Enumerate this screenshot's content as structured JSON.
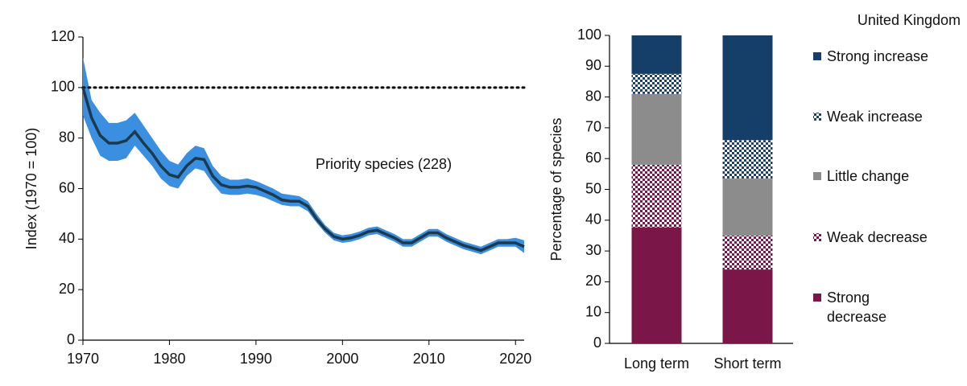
{
  "chart_data": [
    {
      "type": "line",
      "y_label": "Index (1970 = 100)",
      "annotation": "Priority species (228)",
      "hline": 100,
      "x": [
        1970,
        1971,
        1972,
        1973,
        1974,
        1975,
        1976,
        1977,
        1978,
        1979,
        1980,
        1981,
        1982,
        1983,
        1984,
        1985,
        1986,
        1987,
        1988,
        1989,
        1990,
        1991,
        1992,
        1993,
        1994,
        1995,
        1996,
        1997,
        1998,
        1999,
        2000,
        2001,
        2002,
        2003,
        2004,
        2005,
        2006,
        2007,
        2008,
        2009,
        2010,
        2011,
        2012,
        2013,
        2014,
        2015,
        2016,
        2017,
        2018,
        2019,
        2020,
        2021
      ],
      "series": [
        {
          "color": "#1c3a4c",
          "values": [
            100,
            88,
            81,
            78,
            78,
            79,
            82.5,
            78,
            74,
            69,
            65.5,
            64.5,
            69,
            72,
            71.5,
            65,
            61.5,
            60.5,
            60.5,
            61,
            60.5,
            59,
            57.5,
            55.5,
            55,
            55,
            53,
            48,
            44,
            41,
            40,
            40.5,
            41.5,
            43,
            43.5,
            42,
            40.5,
            38.5,
            38.5,
            40.5,
            42.5,
            42.5,
            40.5,
            39,
            37.5,
            36.5,
            35.5,
            37,
            38.5,
            38.5,
            38.5,
            37
          ]
        }
      ],
      "band": {
        "color": "#3b8fe0",
        "lower": [
          89,
          80,
          73,
          71,
          71,
          72,
          77,
          73,
          69,
          64,
          61,
          60,
          65,
          68,
          67,
          62,
          58,
          57.5,
          57.5,
          58,
          57.5,
          56.5,
          55,
          53.5,
          53,
          53,
          51,
          46.5,
          42.5,
          39.5,
          38.5,
          39,
          40,
          41.5,
          42,
          40.5,
          39,
          37,
          37,
          39,
          41,
          41,
          39,
          37.5,
          36,
          35,
          34,
          35.5,
          37,
          37,
          37,
          34.5
        ],
        "upper": [
          112,
          95,
          90,
          86,
          86,
          87,
          90,
          85,
          80,
          75,
          71,
          69.5,
          74,
          77,
          76,
          69,
          65,
          63.5,
          63.5,
          64,
          63,
          61.5,
          60,
          58,
          57.5,
          57,
          55,
          50,
          45.5,
          42.5,
          41.5,
          42,
          43,
          44.5,
          45,
          43.5,
          42,
          40,
          40,
          42,
          44,
          44,
          42,
          40.5,
          39,
          38,
          37,
          38.5,
          40,
          40,
          40.5,
          39.5
        ]
      },
      "xlim": [
        1970,
        2021
      ],
      "xticks": [
        1970,
        1980,
        1990,
        2000,
        2010,
        2020
      ],
      "ylim": [
        0,
        120
      ],
      "yticks": [
        0,
        20,
        40,
        60,
        80,
        100,
        120
      ]
    },
    {
      "type": "stacked_bar",
      "title": "United Kingdom",
      "y_label": "Percentage of species",
      "categories": [
        "Long term",
        "Short term"
      ],
      "series": [
        {
          "name": "Strong decrease",
          "color": "#7b1748",
          "values": [
            37.7,
            24
          ]
        },
        {
          "name": "Weak decrease",
          "color": "#7b1748",
          "pattern": "checker",
          "values": [
            20.3,
            11
          ]
        },
        {
          "name": "Little change",
          "color": "#8c8c8c",
          "values": [
            23,
            18.5
          ]
        },
        {
          "name": "Weak increase",
          "color": "#1f3f6b",
          "pattern": "checker",
          "values": [
            6.5,
            12.5
          ]
        },
        {
          "name": "Strong increase",
          "color": "#153e69",
          "values": [
            12.5,
            34
          ]
        }
      ],
      "ylim": [
        0,
        100
      ],
      "yticks": [
        0,
        10,
        20,
        30,
        40,
        50,
        60,
        70,
        80,
        90,
        100
      ]
    }
  ]
}
